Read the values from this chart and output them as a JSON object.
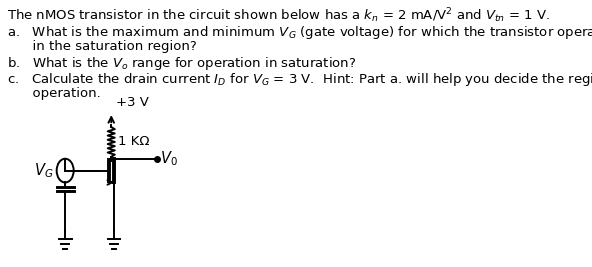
{
  "bg_color": "#ffffff",
  "text_color": "#000000",
  "font_size": 9.5,
  "title": "The nMOS transistor in the circuit shown below has a $k_n$ = 2 mA/V$^2$ and $V_{tn}$ = 1 V.",
  "item_a1": "a.   What is the maximum and minimum $V_G$ (gate voltage) for which the transistor operates",
  "item_a2": "      in the saturation region?",
  "item_b": "b.   What is the $V_o$ range for operation in saturation?",
  "item_c1": "c.   Calculate the drain current $I_D$ for $V_G$ = 3 V.  Hint: Part a. will help you decide the region of",
  "item_c2": "      operation.",
  "circuit_vdd": "+3 V",
  "circuit_r": "1 KΩ",
  "circuit_vo": "$V_0$",
  "circuit_vg": "$V_G$"
}
